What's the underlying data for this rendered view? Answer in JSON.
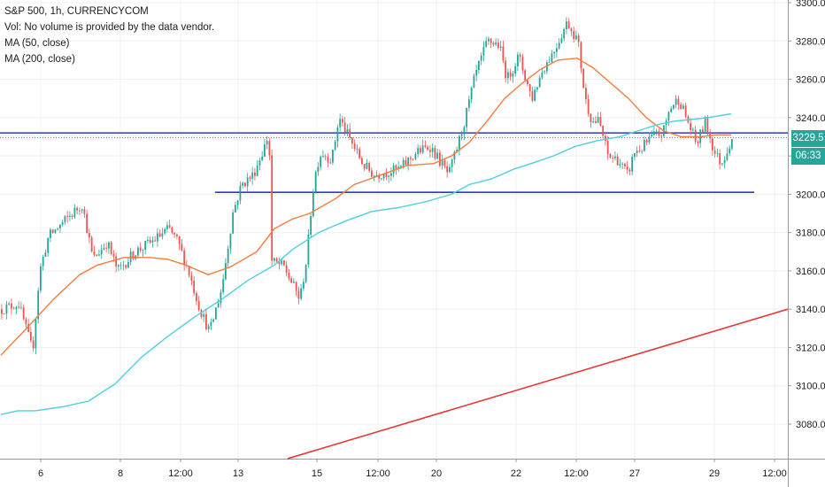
{
  "legend": {
    "symbol_line": "S&P 500, 1h, CURRENCYCOM",
    "volume_line": "Vol: No volume is provided by the data vendor.",
    "ma50_line": "MA (50, close)",
    "ma200_line": "MA (200, close)"
  },
  "price_badge": {
    "value": "3229.5",
    "color": "#26a69a"
  },
  "countdown_badge": {
    "value": "06:33",
    "color": "#26a69a"
  },
  "colors": {
    "up": "#26a69a",
    "down": "#ef5350",
    "ma50": "#f57c3b",
    "ma200": "#4dd0e1",
    "resistance": "#2e39c7",
    "support": "#2e39c7",
    "trendline": "#e53935",
    "price_line": "#26a69a",
    "grid": "#eef0f3",
    "axis_text": "#1c1c1c"
  },
  "chart_data": {
    "type": "candlestick",
    "symbol": "S&P 500",
    "interval": "1h",
    "ylim": [
      3062,
      3306
    ],
    "yticks": [
      3080,
      3100,
      3120,
      3140,
      3160,
      3180,
      3200,
      3220,
      3240,
      3260,
      3280,
      3300
    ],
    "x_tick_labels": [
      "6",
      "8",
      "12:00",
      "13",
      "15",
      "12:00",
      "20",
      "22",
      "12:00",
      "27",
      "29",
      "12:00"
    ],
    "last_price": 3229.5,
    "price_path": [
      [
        1,
        3140
      ],
      [
        20,
        3143
      ],
      [
        36,
        3118
      ],
      [
        44,
        3160
      ],
      [
        54,
        3178
      ],
      [
        70,
        3185
      ],
      [
        92,
        3195
      ],
      [
        104,
        3166
      ],
      [
        120,
        3175
      ],
      [
        132,
        3160
      ],
      [
        152,
        3170
      ],
      [
        170,
        3175
      ],
      [
        190,
        3182
      ],
      [
        200,
        3175
      ],
      [
        212,
        3160
      ],
      [
        225,
        3140
      ],
      [
        236,
        3128
      ],
      [
        250,
        3152
      ],
      [
        262,
        3190
      ],
      [
        272,
        3205
      ],
      [
        285,
        3210
      ],
      [
        298,
        3225
      ],
      [
        303,
        3232
      ],
      [
        306,
        3165
      ],
      [
        320,
        3162
      ],
      [
        338,
        3145
      ],
      [
        346,
        3168
      ],
      [
        352,
        3200
      ],
      [
        357,
        3215
      ],
      [
        362,
        3222
      ],
      [
        374,
        3218
      ],
      [
        382,
        3240
      ],
      [
        395,
        3228
      ],
      [
        410,
        3215
      ],
      [
        422,
        3210
      ],
      [
        440,
        3212
      ],
      [
        450,
        3213
      ],
      [
        470,
        3222
      ],
      [
        485,
        3225
      ],
      [
        495,
        3218
      ],
      [
        506,
        3210
      ],
      [
        516,
        3225
      ],
      [
        525,
        3240
      ],
      [
        536,
        3262
      ],
      [
        550,
        3280
      ],
      [
        563,
        3278
      ],
      [
        572,
        3260
      ],
      [
        585,
        3272
      ],
      [
        600,
        3250
      ],
      [
        612,
        3265
      ],
      [
        625,
        3275
      ],
      [
        640,
        3290
      ],
      [
        652,
        3280
      ],
      [
        660,
        3250
      ],
      [
        668,
        3238
      ],
      [
        676,
        3238
      ],
      [
        686,
        3220
      ],
      [
        697,
        3218
      ],
      [
        708,
        3210
      ],
      [
        716,
        3222
      ],
      [
        724,
        3224
      ],
      [
        736,
        3230
      ],
      [
        748,
        3232
      ],
      [
        756,
        3245
      ],
      [
        766,
        3250
      ],
      [
        776,
        3238
      ],
      [
        786,
        3226
      ],
      [
        796,
        3238
      ],
      [
        806,
        3222
      ],
      [
        814,
        3216
      ],
      [
        822,
        3225
      ],
      [
        826,
        3229.5
      ]
    ],
    "series": [
      {
        "name": "MA (50, close)",
        "points": [
          [
            1,
            3116
          ],
          [
            30,
            3130
          ],
          [
            60,
            3145
          ],
          [
            90,
            3158
          ],
          [
            110,
            3163
          ],
          [
            140,
            3167
          ],
          [
            170,
            3167
          ],
          [
            190,
            3166
          ],
          [
            210,
            3163
          ],
          [
            235,
            3158
          ],
          [
            260,
            3162
          ],
          [
            290,
            3170
          ],
          [
            310,
            3182
          ],
          [
            330,
            3187
          ],
          [
            350,
            3190
          ],
          [
            380,
            3198
          ],
          [
            400,
            3205
          ],
          [
            430,
            3210
          ],
          [
            460,
            3215
          ],
          [
            490,
            3216
          ],
          [
            510,
            3220
          ],
          [
            530,
            3227
          ],
          [
            550,
            3238
          ],
          [
            570,
            3250
          ],
          [
            590,
            3258
          ],
          [
            610,
            3265
          ],
          [
            630,
            3270
          ],
          [
            652,
            3271
          ],
          [
            670,
            3266
          ],
          [
            690,
            3258
          ],
          [
            710,
            3250
          ],
          [
            730,
            3240
          ],
          [
            750,
            3233
          ],
          [
            770,
            3230
          ],
          [
            790,
            3230
          ],
          [
            810,
            3231
          ],
          [
            826,
            3231
          ]
        ]
      },
      {
        "name": "MA (200, close)",
        "points": [
          [
            1,
            3085
          ],
          [
            20,
            3087
          ],
          [
            40,
            3087
          ],
          [
            70,
            3089
          ],
          [
            100,
            3092
          ],
          [
            130,
            3101
          ],
          [
            160,
            3115
          ],
          [
            190,
            3126
          ],
          [
            220,
            3136
          ],
          [
            250,
            3145
          ],
          [
            280,
            3155
          ],
          [
            310,
            3163
          ],
          [
            330,
            3171
          ],
          [
            360,
            3180
          ],
          [
            390,
            3186
          ],
          [
            420,
            3191
          ],
          [
            450,
            3193
          ],
          [
            480,
            3196
          ],
          [
            510,
            3200
          ],
          [
            530,
            3205
          ],
          [
            555,
            3208
          ],
          [
            580,
            3213
          ],
          [
            600,
            3216
          ],
          [
            625,
            3220
          ],
          [
            650,
            3225
          ],
          [
            675,
            3228
          ],
          [
            700,
            3230
          ],
          [
            720,
            3233
          ],
          [
            740,
            3236
          ],
          [
            760,
            3238
          ],
          [
            780,
            3239
          ],
          [
            800,
            3240
          ],
          [
            826,
            3242
          ]
        ]
      }
    ],
    "horizontal_lines": [
      {
        "name": "resistance",
        "price": 3232
      },
      {
        "name": "support",
        "price": 3201,
        "x_from": 243,
        "x_to": 852
      }
    ],
    "trendline": {
      "from": [
        325,
        3062
      ],
      "to": [
        890,
        3140
      ]
    }
  }
}
